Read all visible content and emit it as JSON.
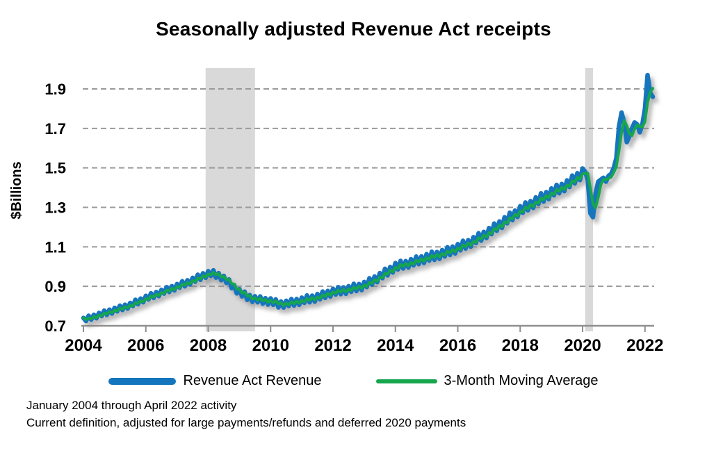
{
  "title": "Seasonally adjusted Revenue Act receipts",
  "legend": [
    {
      "label": "Revenue Act Revenue",
      "color": "#1375BD"
    },
    {
      "label": "3-Month Moving Average",
      "color": "#17A64E"
    }
  ],
  "footnotes": [
    "January 2004 through April 2022 activity",
    "Current definition, adjusted for large payments/refunds and deferred 2020 payments"
  ],
  "chart_data": {
    "type": "line",
    "title": "Seasonally adjusted Revenue Act receipts",
    "xlabel": "",
    "ylabel": "$Billions",
    "x_tick_labels": [
      "2004",
      "2006",
      "2008",
      "2010",
      "2012",
      "2014",
      "2016",
      "2018",
      "2020",
      "2022"
    ],
    "y_ticks": [
      0.7,
      0.9,
      1.1,
      1.3,
      1.5,
      1.7,
      1.9
    ],
    "ylim": [
      0.7,
      2.0
    ],
    "grid": "horizontal dashed",
    "legend_position": "bottom",
    "monthly_from": "2004-01",
    "monthly_to": "2022-04",
    "recession_bands": [
      {
        "from": "2007-12",
        "to": "2009-06"
      },
      {
        "from": "2020-02",
        "to": "2020-04"
      }
    ],
    "band_color": "#d9d9d9",
    "series": [
      {
        "name": "Revenue Act Revenue",
        "color": "#1375BD",
        "monthly_values": [
          0.74,
          0.724,
          0.751,
          0.731,
          0.756,
          0.738,
          0.765,
          0.749,
          0.777,
          0.755,
          0.782,
          0.762,
          0.791,
          0.773,
          0.802,
          0.78,
          0.807,
          0.787,
          0.816,
          0.8,
          0.832,
          0.809,
          0.838,
          0.819,
          0.852,
          0.833,
          0.865,
          0.841,
          0.871,
          0.85,
          0.882,
          0.863,
          0.896,
          0.871,
          0.901,
          0.879,
          0.912,
          0.893,
          0.926,
          0.9,
          0.931,
          0.909,
          0.943,
          0.923,
          0.959,
          0.933,
          0.966,
          0.943,
          0.977,
          0.953,
          0.981,
          0.944,
          0.967,
          0.931,
          0.953,
          0.917,
          0.935,
          0.89,
          0.906,
          0.864,
          0.886,
          0.849,
          0.873,
          0.831,
          0.856,
          0.821,
          0.85,
          0.819,
          0.849,
          0.812,
          0.84,
          0.807,
          0.839,
          0.806,
          0.834,
          0.793,
          0.823,
          0.792,
          0.827,
          0.8,
          0.836,
          0.802,
          0.836,
          0.806,
          0.843,
          0.816,
          0.854,
          0.819,
          0.853,
          0.822,
          0.861,
          0.834,
          0.874,
          0.841,
          0.877,
          0.848,
          0.888,
          0.858,
          0.896,
          0.86,
          0.895,
          0.862,
          0.901,
          0.872,
          0.913,
          0.876,
          0.912,
          0.881,
          0.922,
          0.896,
          0.941,
          0.908,
          0.95,
          0.921,
          0.967,
          0.941,
          0.989,
          0.955,
          0.998,
          0.97,
          1.018,
          0.985,
          1.029,
          0.99,
          1.028,
          0.995,
          1.038,
          1.006,
          1.051,
          1.012,
          1.052,
          1.018,
          1.063,
          1.03,
          1.075,
          1.034,
          1.074,
          1.039,
          1.084,
          1.051,
          1.098,
          1.059,
          1.101,
          1.066,
          1.114,
          1.082,
          1.131,
          1.091,
          1.134,
          1.1,
          1.149,
          1.119,
          1.169,
          1.131,
          1.176,
          1.144,
          1.195,
          1.164,
          1.218,
          1.181,
          1.229,
          1.196,
          1.25,
          1.219,
          1.273,
          1.235,
          1.284,
          1.251,
          1.306,
          1.272,
          1.325,
          1.285,
          1.332,
          1.297,
          1.351,
          1.317,
          1.371,
          1.329,
          1.377,
          1.342,
          1.396,
          1.361,
          1.414,
          1.371,
          1.419,
          1.382,
          1.437,
          1.403,
          1.461,
          1.421,
          1.473,
          1.438,
          1.497,
          1.48,
          1.44,
          1.27,
          1.25,
          1.37,
          1.43,
          1.44,
          1.45,
          1.43,
          1.46,
          1.47,
          1.5,
          1.55,
          1.71,
          1.78,
          1.73,
          1.63,
          1.66,
          1.7,
          1.73,
          1.72,
          1.68,
          1.72,
          1.8,
          1.97,
          1.88,
          1.86
        ]
      },
      {
        "name": "3-Month Moving Average",
        "color": "#17A64E",
        "derived": "3-month moving average of Revenue Act Revenue"
      }
    ]
  }
}
